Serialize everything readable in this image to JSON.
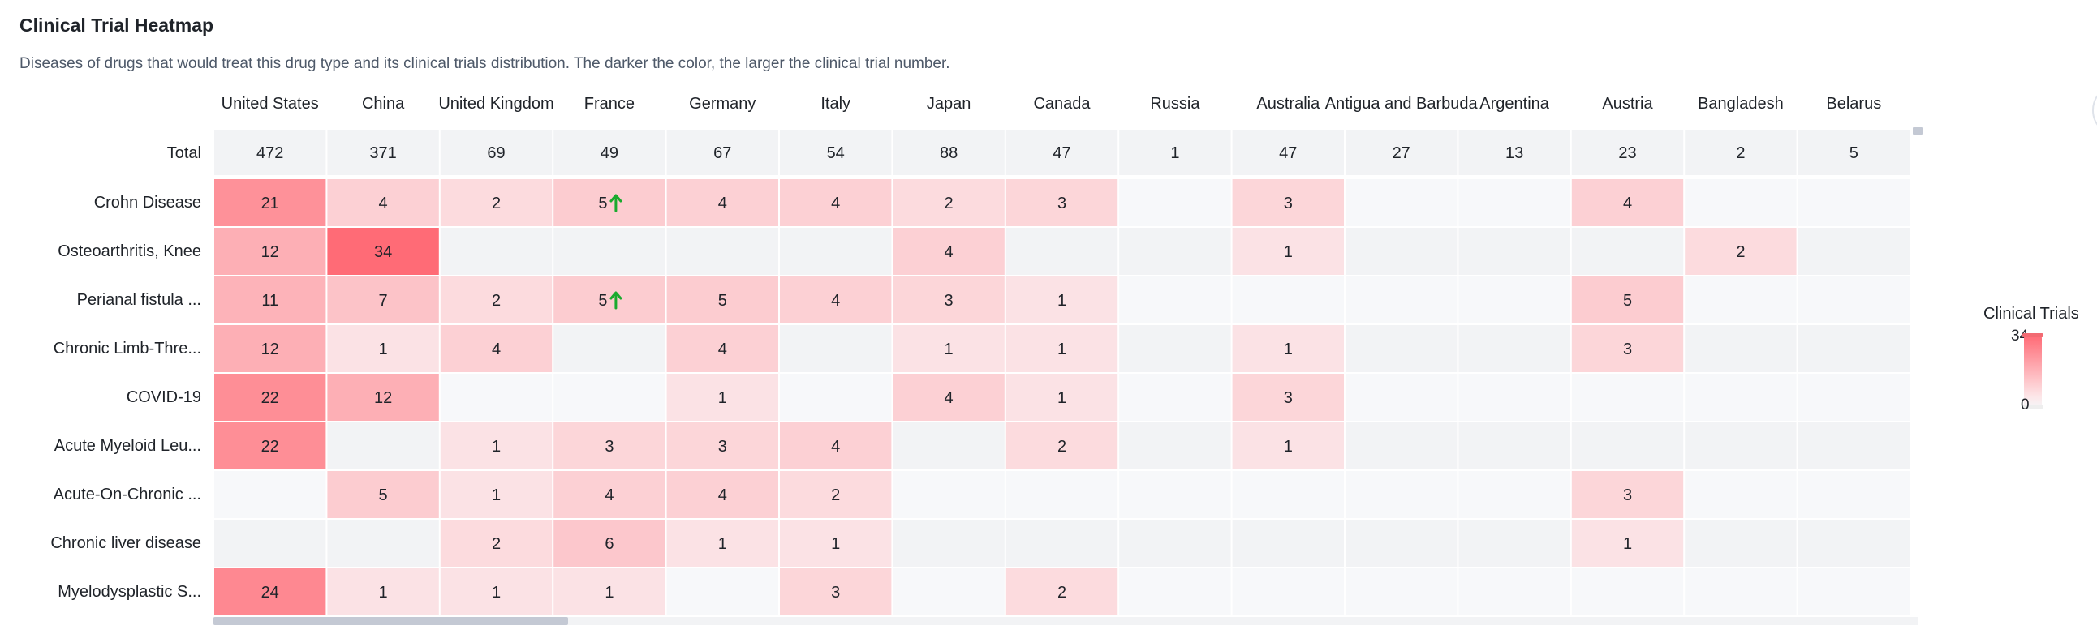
{
  "header": {
    "title": "Clinical Trial Heatmap",
    "subtitle": "Diseases of drugs that would treat this drug type and its clinical trials distribution. The darker the color, the larger the clinical trial number."
  },
  "legend": {
    "title": "Clinical Trials",
    "max_label": "34",
    "min_label": "0"
  },
  "colors": {
    "high": "#ff6b76",
    "low": "#fbecee",
    "empty_even": "#f7f8fa",
    "empty_odd": "#f2f3f5",
    "total_row": "#f2f3f5",
    "trend_up": "#1aaa2e"
  },
  "chart_data": {
    "type": "heatmap",
    "title": "Clinical Trial Heatmap",
    "columns": [
      "United States",
      "China",
      "United Kingdom",
      "France",
      "Germany",
      "Italy",
      "Japan",
      "Canada",
      "Russia",
      "Australia",
      "Antigua and Barbuda",
      "Argentina",
      "Austria",
      "Bangladesh",
      "Belarus"
    ],
    "total_label": "Total",
    "totals": [
      472,
      371,
      69,
      49,
      67,
      54,
      88,
      47,
      1,
      47,
      27,
      13,
      23,
      2,
      5
    ],
    "rows": [
      {
        "label": "Crohn Disease",
        "values": [
          21,
          4,
          2,
          5,
          4,
          4,
          2,
          3,
          null,
          3,
          null,
          null,
          4,
          null,
          null
        ]
      },
      {
        "label": "Osteoarthritis, Knee",
        "values": [
          12,
          34,
          null,
          null,
          null,
          null,
          4,
          null,
          null,
          1,
          null,
          null,
          null,
          2,
          null
        ]
      },
      {
        "label": "Perianal fistula ...",
        "values": [
          11,
          7,
          2,
          5,
          5,
          4,
          3,
          1,
          null,
          null,
          null,
          null,
          5,
          null,
          null
        ]
      },
      {
        "label": "Chronic Limb-Thre...",
        "values": [
          12,
          1,
          4,
          null,
          4,
          null,
          1,
          1,
          null,
          1,
          null,
          null,
          3,
          null,
          null
        ]
      },
      {
        "label": "COVID-19",
        "values": [
          22,
          12,
          null,
          null,
          1,
          null,
          4,
          1,
          null,
          3,
          null,
          null,
          null,
          null,
          null
        ]
      },
      {
        "label": "Acute Myeloid Leu...",
        "values": [
          22,
          null,
          1,
          3,
          3,
          4,
          null,
          2,
          null,
          1,
          null,
          null,
          null,
          null,
          null
        ]
      },
      {
        "label": "Acute-On-Chronic ...",
        "values": [
          null,
          5,
          1,
          4,
          4,
          2,
          null,
          null,
          null,
          null,
          null,
          null,
          3,
          null,
          null
        ]
      },
      {
        "label": "Chronic liver disease",
        "values": [
          null,
          null,
          2,
          6,
          1,
          1,
          null,
          null,
          null,
          null,
          null,
          null,
          1,
          null,
          null
        ]
      },
      {
        "label": "Myelodysplastic S...",
        "values": [
          24,
          1,
          1,
          1,
          null,
          3,
          null,
          2,
          null,
          null,
          null,
          null,
          null,
          null,
          null
        ]
      }
    ],
    "trend_up": [
      [
        0,
        3
      ],
      [
        2,
        3
      ]
    ],
    "color_range": [
      0,
      34
    ]
  }
}
